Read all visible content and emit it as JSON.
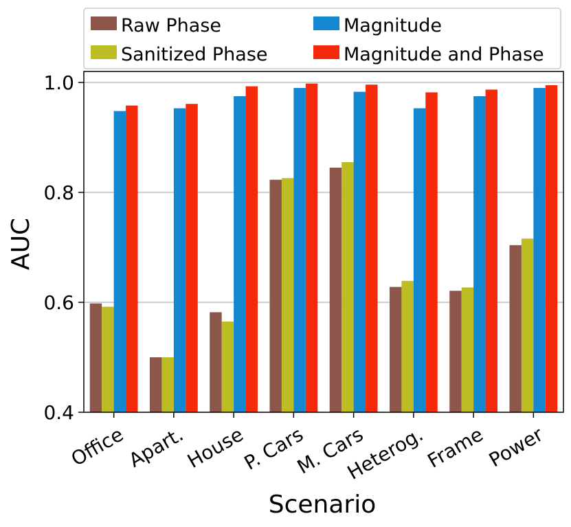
{
  "chart_data": {
    "type": "bar",
    "title": "",
    "xlabel": "Scenario",
    "ylabel": "AUC",
    "ylim": [
      0.4,
      1.02
    ],
    "yticks": [
      0.4,
      0.6,
      0.8,
      1.0
    ],
    "ytick_labels": [
      "0.4",
      "0.6",
      "0.8",
      "1.0"
    ],
    "grid": "horizontal",
    "legend_position": "top",
    "categories": [
      "Office",
      "Apart.",
      "House",
      "P. Cars",
      "M. Cars",
      "Heterog.",
      "Frame",
      "Power"
    ],
    "series": [
      {
        "name": "Raw Phase",
        "color": "#8c564b",
        "values": [
          0.598,
          0.5,
          0.582,
          0.823,
          0.845,
          0.628,
          0.621,
          0.704
        ]
      },
      {
        "name": "Sanitized Phase",
        "color": "#bcbd22",
        "values": [
          0.592,
          0.5,
          0.565,
          0.826,
          0.855,
          0.639,
          0.627,
          0.716
        ]
      },
      {
        "name": "Magnitude",
        "color": "#1487d1",
        "values": [
          0.948,
          0.953,
          0.975,
          0.99,
          0.983,
          0.953,
          0.975,
          0.99
        ]
      },
      {
        "name": "Magnitude and Phase",
        "color": "#f42a0a",
        "values": [
          0.958,
          0.961,
          0.993,
          0.998,
          0.996,
          0.982,
          0.987,
          0.995
        ]
      }
    ]
  }
}
